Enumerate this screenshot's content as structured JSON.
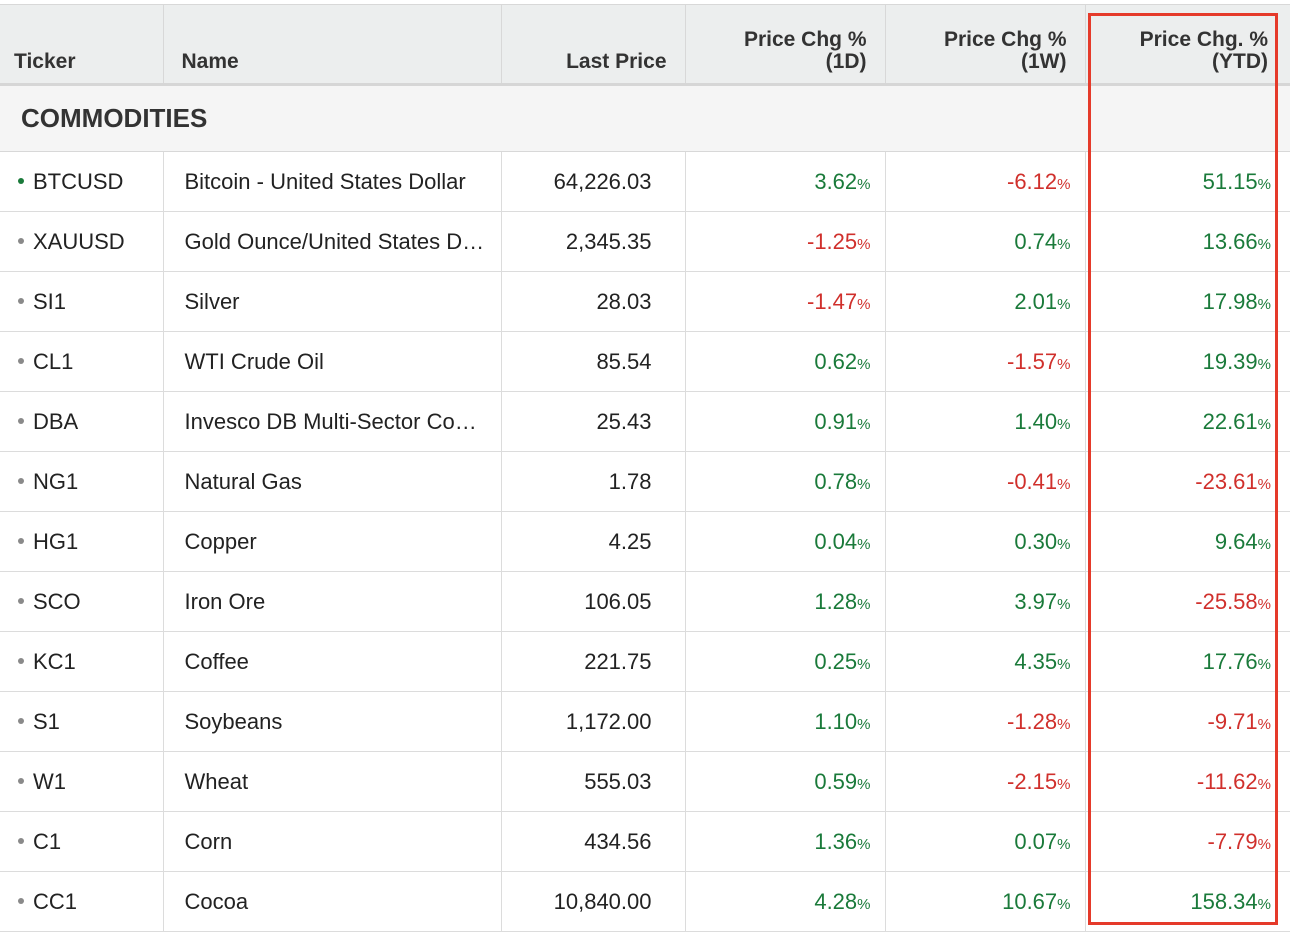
{
  "headers": {
    "ticker": "Ticker",
    "name": "Name",
    "last_price": "Last Price",
    "chg_1d": [
      "Price Chg %",
      "(1D)"
    ],
    "chg_1w": [
      "Price Chg %",
      "(1W)"
    ],
    "chg_ytd": [
      "Price Chg. %",
      "(YTD)"
    ]
  },
  "section_title": "COMMODITIES",
  "percent_sign": "%",
  "colors": {
    "positive": "#1a7a3a",
    "negative": "#d0302c",
    "highlight_border": "#e53a2a"
  },
  "rows": [
    {
      "ticker": "BTCUSD",
      "name": "Bitcoin - United States Dollar",
      "last": "64,226.03",
      "d1": "3.62",
      "w1": "-6.12",
      "ytd": "51.15",
      "active": true
    },
    {
      "ticker": "XAUUSD",
      "name": "Gold Ounce/United States Dollar",
      "last": "2,345.35",
      "d1": "-1.25",
      "w1": "0.74",
      "ytd": "13.66",
      "active": false
    },
    {
      "ticker": "SI1",
      "name": "Silver",
      "last": "28.03",
      "d1": "-1.47",
      "w1": "2.01",
      "ytd": "17.98",
      "active": false
    },
    {
      "ticker": "CL1",
      "name": "WTI Crude Oil",
      "last": "85.54",
      "d1": "0.62",
      "w1": "-1.57",
      "ytd": "19.39",
      "active": false
    },
    {
      "ticker": "DBA",
      "name": "Invesco DB Multi-Sector Commodity",
      "last": "25.43",
      "d1": "0.91",
      "w1": "1.40",
      "ytd": "22.61",
      "active": false
    },
    {
      "ticker": "NG1",
      "name": "Natural Gas",
      "last": "1.78",
      "d1": "0.78",
      "w1": "-0.41",
      "ytd": "-23.61",
      "active": false
    },
    {
      "ticker": "HG1",
      "name": "Copper",
      "last": "4.25",
      "d1": "0.04",
      "w1": "0.30",
      "ytd": "9.64",
      "active": false
    },
    {
      "ticker": "SCO",
      "name": "Iron Ore",
      "last": "106.05",
      "d1": "1.28",
      "w1": "3.97",
      "ytd": "-25.58",
      "active": false
    },
    {
      "ticker": "KC1",
      "name": "Coffee",
      "last": "221.75",
      "d1": "0.25",
      "w1": "4.35",
      "ytd": "17.76",
      "active": false
    },
    {
      "ticker": "S1",
      "name": "Soybeans",
      "last": "1,172.00",
      "d1": "1.10",
      "w1": "-1.28",
      "ytd": "-9.71",
      "active": false
    },
    {
      "ticker": "W1",
      "name": "Wheat",
      "last": "555.03",
      "d1": "0.59",
      "w1": "-2.15",
      "ytd": "-11.62",
      "active": false
    },
    {
      "ticker": "C1",
      "name": "Corn",
      "last": "434.56",
      "d1": "1.36",
      "w1": "0.07",
      "ytd": "-7.79",
      "active": false
    },
    {
      "ticker": "CC1",
      "name": "Cocoa",
      "last": "10,840.00",
      "d1": "4.28",
      "w1": "10.67",
      "ytd": "158.34",
      "active": false
    }
  ]
}
